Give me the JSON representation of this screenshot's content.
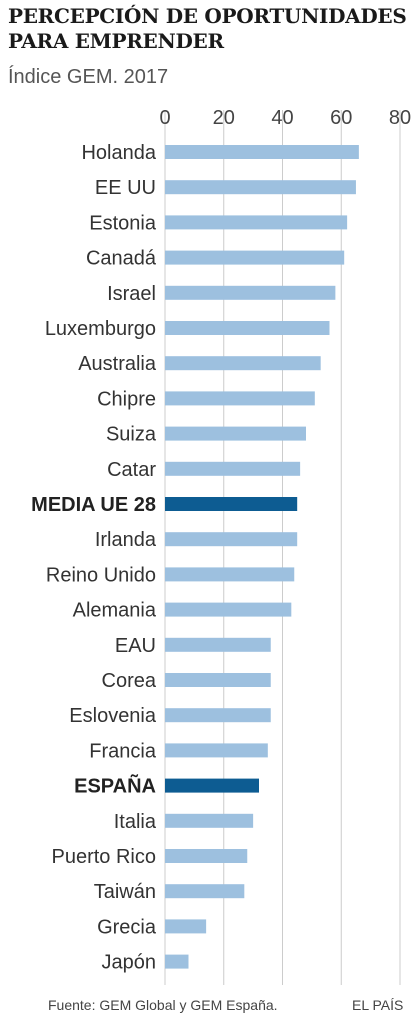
{
  "title": "PERCEPCIÓN DE OPORTUNIDADES PARA EMPRENDER",
  "subtitle": "Índice GEM. 2017",
  "source": "Fuente: GEM Global y GEM España.",
  "brand": "EL PAÍS",
  "colors": {
    "bar": "#9dc0df",
    "highlight": "#0d5c92",
    "grid": "#cccccc"
  },
  "chart_data": {
    "type": "bar",
    "orientation": "horizontal",
    "categories": [
      "Holanda",
      "EE UU",
      "Estonia",
      "Canadá",
      "Israel",
      "Luxemburgo",
      "Australia",
      "Chipre",
      "Suiza",
      "Catar",
      "MEDIA UE 28",
      "Irlanda",
      "Reino Unido",
      "Alemania",
      "EAU",
      "Corea",
      "Eslovenia",
      "Francia",
      "ESPAÑA",
      "Italia",
      "Puerto Rico",
      "Taiwán",
      "Grecia",
      "Japón"
    ],
    "values": [
      66,
      65,
      62,
      61,
      58,
      56,
      53,
      51,
      48,
      46,
      45,
      45,
      44,
      43,
      36,
      36,
      36,
      35,
      32,
      30,
      28,
      27,
      14,
      8
    ],
    "highlighted": [
      "MEDIA UE 28",
      "ESPAÑA"
    ],
    "xticks": [
      0,
      20,
      40,
      60,
      80
    ],
    "xlim": [
      0,
      80
    ],
    "grid": true
  }
}
